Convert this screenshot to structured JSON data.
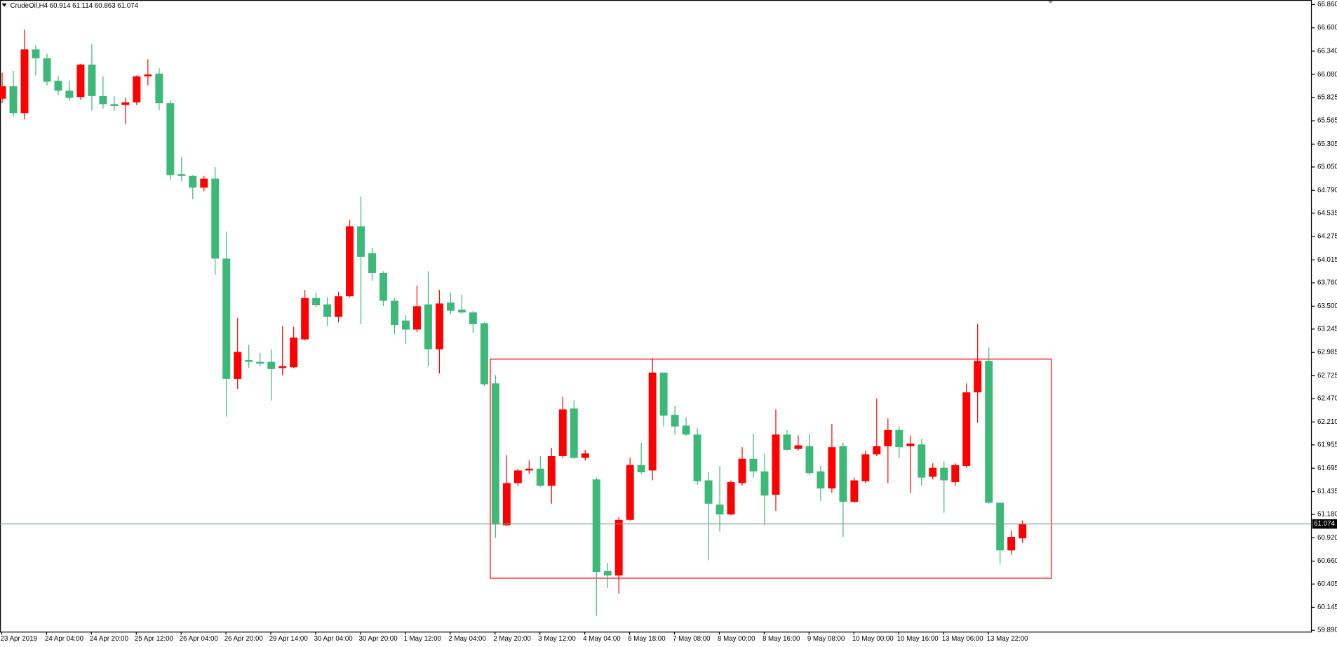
{
  "chart_data": {
    "type": "candlestick",
    "header": "CrudeOil,H4  60.914 61.114 60.863 61.074",
    "categories": [
      "23 Apr 2019",
      null,
      null,
      null,
      "24 Apr 04:00",
      null,
      null,
      null,
      "24 Apr 20:00",
      null,
      null,
      null,
      "25 Apr 12:00",
      null,
      null,
      null,
      "26 Apr 04:00",
      null,
      null,
      null,
      "26 Apr 20:00",
      null,
      null,
      null,
      "29 Apr 14:00",
      null,
      null,
      null,
      "30 Apr 04:00",
      null,
      null,
      null,
      "30 Apr 20:00",
      null,
      null,
      null,
      "1 May 12:00",
      null,
      null,
      null,
      "2 May 04:00",
      null,
      null,
      null,
      "2 May 20:00",
      null,
      null,
      null,
      "3 May 12:00",
      null,
      null,
      null,
      "4 May 04:00",
      null,
      null,
      null,
      "6 May 18:00",
      null,
      null,
      null,
      "7 May 08:00",
      null,
      null,
      null,
      "8 May 00:00",
      null,
      null,
      null,
      "8 May 16:00",
      null,
      null,
      null,
      "9 May 08:00",
      null,
      null,
      null,
      "10 May 00:00",
      null,
      null,
      null,
      "10 May 16:00",
      null,
      null,
      null,
      "13 May 06:00",
      null,
      null,
      null,
      "13 May 22:00",
      null,
      null,
      null
    ],
    "open": [
      65.81,
      65.95,
      65.65,
      66.36,
      66.26,
      66.01,
      65.9,
      65.83,
      66.19,
      65.84,
      65.75,
      65.74,
      65.77,
      66.06,
      66.09,
      65.76,
      64.97,
      64.95,
      64.82,
      64.92,
      64.03,
      62.69,
      62.9,
      62.88,
      62.88,
      62.81,
      62.82,
      63.13,
      63.59,
      63.52,
      63.38,
      63.61,
      64.39,
      64.09,
      63.87,
      63.56,
      63.34,
      63.24,
      63.52,
      63.02,
      63.54,
      63.46,
      63.43,
      63.31,
      62.64,
      61.06,
      61.53,
      61.67,
      61.69,
      61.5,
      61.83,
      62.36,
      61.81,
      61.57,
      60.55,
      60.5,
      61.12,
      61.73,
      61.67,
      62.76,
      62.29,
      62.17,
      62.07,
      61.56,
      61.29,
      61.18,
      61.53,
      61.8,
      61.66,
      61.4,
      62.07,
      61.91,
      61.94,
      61.66,
      61.47,
      61.94,
      61.32,
      61.55,
      61.85,
      61.94,
      62.12,
      61.94,
      61.96,
      61.6,
      61.7,
      61.54,
      61.72,
      62.54,
      62.89,
      61.31,
      60.78,
      60.914
    ],
    "high": [
      66.1,
      66.12,
      66.58,
      66.41,
      66.31,
      66.06,
      66.01,
      66.2,
      66.42,
      66.06,
      65.84,
      65.82,
      66.07,
      66.25,
      66.15,
      65.79,
      65.16,
      64.96,
      64.95,
      65.05,
      64.33,
      63.37,
      63.07,
      62.98,
      63.02,
      63.28,
      63.27,
      63.68,
      63.65,
      63.6,
      63.66,
      64.46,
      64.72,
      64.15,
      63.89,
      63.59,
      63.4,
      63.73,
      63.89,
      63.68,
      63.65,
      63.63,
      63.45,
      63.32,
      62.73,
      61.84,
      61.69,
      61.78,
      61.83,
      61.92,
      62.49,
      62.45,
      61.9,
      61.59,
      60.64,
      61.15,
      61.81,
      61.98,
      62.92,
      62.76,
      62.39,
      62.26,
      62.14,
      61.65,
      61.72,
      61.56,
      61.93,
      62.08,
      61.85,
      62.35,
      62.12,
      62.06,
      62.08,
      61.72,
      62.19,
      61.98,
      61.59,
      61.89,
      62.47,
      62.25,
      62.16,
      62.06,
      62.02,
      61.75,
      61.77,
      61.75,
      62.64,
      63.3,
      63.04,
      61.31,
      61.0,
      61.114
    ],
    "low": [
      65.76,
      65.61,
      65.58,
      66.07,
      65.96,
      65.85,
      65.79,
      65.8,
      65.68,
      65.7,
      65.68,
      65.53,
      65.74,
      65.96,
      65.68,
      64.9,
      64.89,
      64.69,
      64.78,
      63.85,
      62.27,
      62.58,
      62.81,
      62.83,
      62.45,
      62.73,
      62.81,
      63.12,
      63.49,
      63.28,
      63.32,
      63.6,
      63.3,
      63.78,
      63.5,
      63.19,
      63.08,
      63.21,
      62.83,
      62.75,
      63.41,
      63.42,
      63.2,
      62.61,
      60.92,
      61.05,
      61.5,
      61.63,
      61.49,
      61.3,
      61.81,
      61.8,
      61.78,
      60.05,
      60.36,
      60.3,
      61.11,
      61.63,
      61.56,
      62.16,
      62.07,
      62.05,
      61.51,
      60.67,
      60.99,
      61.17,
      61.5,
      61.59,
      61.06,
      61.22,
      61.89,
      61.89,
      61.62,
      61.33,
      61.42,
      60.93,
      61.31,
      61.53,
      61.83,
      61.53,
      61.81,
      61.42,
      61.5,
      61.57,
      61.2,
      61.5,
      61.7,
      62.2,
      61.3,
      60.63,
      60.73,
      60.863
    ],
    "close": [
      65.95,
      65.65,
      66.36,
      66.26,
      66.0,
      65.9,
      65.82,
      66.19,
      65.84,
      65.75,
      65.73,
      65.77,
      66.06,
      66.08,
      65.76,
      64.96,
      64.95,
      64.82,
      64.92,
      64.03,
      62.69,
      62.99,
      62.88,
      62.86,
      62.8,
      62.83,
      63.15,
      63.59,
      63.51,
      63.38,
      63.61,
      64.39,
      64.05,
      63.87,
      63.56,
      63.29,
      63.24,
      63.5,
      63.02,
      63.53,
      63.45,
      63.43,
      63.3,
      62.63,
      61.07,
      61.53,
      61.67,
      61.69,
      61.5,
      61.83,
      62.35,
      61.81,
      61.86,
      60.54,
      60.5,
      61.12,
      61.73,
      61.65,
      62.76,
      62.28,
      62.16,
      62.07,
      61.55,
      61.3,
      61.18,
      61.54,
      61.8,
      61.66,
      61.39,
      62.07,
      61.9,
      61.95,
      61.64,
      61.47,
      61.93,
      61.32,
      61.56,
      61.85,
      61.94,
      62.12,
      61.93,
      61.97,
      61.59,
      61.7,
      61.56,
      61.73,
      62.54,
      62.89,
      61.31,
      60.78,
      60.93,
      61.074
    ],
    "up_color": "#ff0000",
    "down_color": "#3cb878",
    "ylim": [
      59.87,
      66.91
    ],
    "yticks": [
      {
        "value": 66.86,
        "label": "66.860"
      },
      {
        "value": 66.6,
        "label": "66.600"
      },
      {
        "value": 66.34,
        "label": "66.340"
      },
      {
        "value": 66.08,
        "label": "66.080"
      },
      65.825,
      65.565,
      65.305,
      {
        "value": 65.05,
        "label": "65.050"
      },
      {
        "value": 64.79,
        "label": "64.790"
      },
      64.535,
      64.275,
      64.015,
      {
        "value": 63.76,
        "label": "63.760"
      },
      {
        "value": 63.5,
        "label": "63.500"
      },
      63.245,
      62.985,
      62.725,
      {
        "value": 62.47,
        "label": "62.470"
      },
      {
        "value": 62.21,
        "label": "62.210"
      },
      61.955,
      61.695,
      61.435,
      {
        "value": 61.18,
        "label": "61.180"
      },
      {
        "value": 60.92,
        "label": "60.920"
      },
      {
        "value": 60.66,
        "label": "60.660"
      },
      60.405,
      60.145,
      {
        "value": 59.89,
        "label": "59.890"
      }
    ],
    "rectangle": {
      "high": 62.91,
      "low": 60.47,
      "color": "#ff0000"
    },
    "bid_line_color": "#7f9c8a",
    "grid": false
  }
}
